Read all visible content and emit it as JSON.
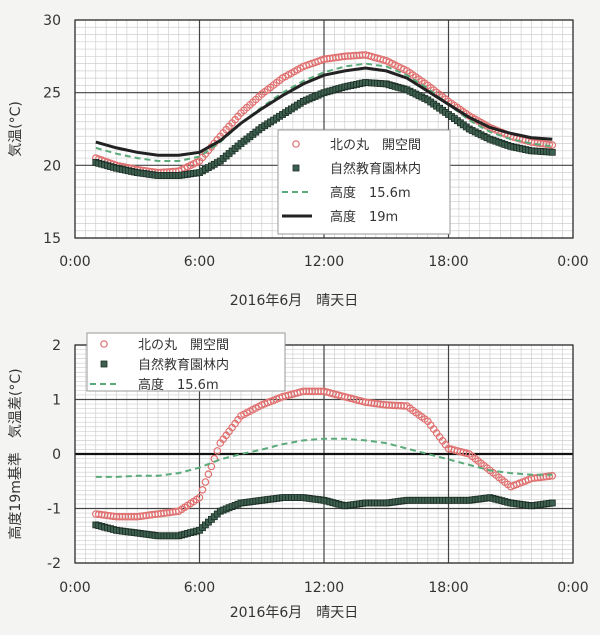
{
  "chart_data": [
    {
      "type": "line",
      "ylabel": "気温(°C)",
      "xlabel": "2016年6月　晴天日",
      "x_tick_labels": [
        "0:00",
        "6:00",
        "12:00",
        "18:00",
        "0:00"
      ],
      "y_tick_labels": [
        "15",
        "20",
        "25",
        "30"
      ],
      "xlim": [
        0,
        24
      ],
      "ylim": [
        15,
        30
      ],
      "grid": true,
      "legend_position": "center-right",
      "series": [
        {
          "name": "北の丸　開空間",
          "style": "circle",
          "color": "#e07070",
          "x": [
            1,
            2,
            3,
            4,
            5,
            6,
            7,
            8,
            9,
            10,
            11,
            12,
            13,
            14,
            15,
            16,
            17,
            18,
            19,
            20,
            21,
            22,
            23
          ],
          "y": [
            20.5,
            20.0,
            19.7,
            19.5,
            19.6,
            20.3,
            22.0,
            23.6,
            24.9,
            26.0,
            26.8,
            27.3,
            27.5,
            27.6,
            27.2,
            26.5,
            25.5,
            24.4,
            23.4,
            22.6,
            22.0,
            21.6,
            21.4
          ]
        },
        {
          "name": "自然教育園林内",
          "style": "square",
          "color": "#3e6050",
          "x": [
            1,
            2,
            3,
            4,
            5,
            6,
            7,
            8,
            9,
            10,
            11,
            12,
            13,
            14,
            15,
            16,
            17,
            18,
            19,
            20,
            21,
            22,
            23
          ],
          "y": [
            20.2,
            19.8,
            19.5,
            19.3,
            19.3,
            19.5,
            20.3,
            21.5,
            22.6,
            23.5,
            24.4,
            25.0,
            25.4,
            25.7,
            25.6,
            25.2,
            24.5,
            23.5,
            22.5,
            21.8,
            21.3,
            21.0,
            20.9
          ]
        },
        {
          "name": "高度　15.6m",
          "style": "dashed",
          "color": "#5aaa7a",
          "x": [
            1,
            2,
            3,
            4,
            5,
            6,
            7,
            8,
            9,
            10,
            11,
            12,
            13,
            14,
            15,
            16,
            17,
            18,
            19,
            20,
            21,
            22,
            23
          ],
          "y": [
            21.2,
            20.8,
            20.5,
            20.3,
            20.3,
            20.6,
            21.6,
            22.9,
            24.0,
            25.0,
            25.8,
            26.4,
            26.8,
            27.0,
            26.8,
            26.2,
            25.3,
            24.2,
            23.1,
            22.3,
            21.8,
            21.5,
            21.3
          ]
        },
        {
          "name": "高度　19m",
          "style": "solid",
          "color": "#222222",
          "x": [
            1,
            2,
            3,
            4,
            5,
            6,
            7,
            8,
            9,
            10,
            11,
            12,
            13,
            14,
            15,
            16,
            17,
            18,
            19,
            20,
            21,
            22,
            23
          ],
          "y": [
            21.6,
            21.2,
            20.9,
            20.7,
            20.7,
            20.9,
            21.7,
            22.9,
            23.9,
            24.8,
            25.6,
            26.2,
            26.5,
            26.7,
            26.5,
            26.0,
            25.1,
            24.2,
            23.3,
            22.6,
            22.2,
            21.9,
            21.8
          ]
        }
      ]
    },
    {
      "type": "line",
      "ylabel": "高度19m基準　気温差(°C)",
      "xlabel": "2016年6月　晴天日",
      "x_tick_labels": [
        "0:00",
        "6:00",
        "12:00",
        "18:00",
        "0:00"
      ],
      "y_tick_labels": [
        "-2",
        "-1",
        "0",
        "1",
        "2"
      ],
      "xlim": [
        0,
        24
      ],
      "ylim": [
        -2,
        2
      ],
      "grid": true,
      "legend_position": "top-left",
      "series": [
        {
          "name": "北の丸　開空間",
          "style": "circle",
          "color": "#e07070",
          "x": [
            1,
            2,
            3,
            4,
            5,
            6,
            7,
            8,
            9,
            10,
            11,
            12,
            13,
            14,
            15,
            16,
            17,
            18,
            19,
            20,
            21,
            22,
            23
          ],
          "y": [
            -1.1,
            -1.15,
            -1.15,
            -1.1,
            -1.05,
            -0.8,
            0.2,
            0.7,
            0.9,
            1.05,
            1.15,
            1.15,
            1.05,
            0.95,
            0.9,
            0.88,
            0.6,
            0.1,
            0.0,
            -0.3,
            -0.6,
            -0.45,
            -0.4
          ]
        },
        {
          "name": "自然教育園林内",
          "style": "square",
          "color": "#3e6050",
          "x": [
            1,
            2,
            3,
            4,
            5,
            6,
            7,
            8,
            9,
            10,
            11,
            12,
            13,
            14,
            15,
            16,
            17,
            18,
            19,
            20,
            21,
            22,
            23
          ],
          "y": [
            -1.3,
            -1.4,
            -1.45,
            -1.5,
            -1.5,
            -1.4,
            -1.05,
            -0.9,
            -0.85,
            -0.8,
            -0.8,
            -0.85,
            -0.95,
            -0.9,
            -0.9,
            -0.85,
            -0.85,
            -0.85,
            -0.85,
            -0.8,
            -0.9,
            -0.95,
            -0.9
          ]
        },
        {
          "name": "高度　15.6m",
          "style": "dashed",
          "color": "#5aaa7a",
          "x": [
            1,
            2,
            3,
            4,
            5,
            6,
            7,
            8,
            9,
            10,
            11,
            12,
            13,
            14,
            15,
            16,
            17,
            18,
            19,
            20,
            21,
            22,
            23
          ],
          "y": [
            -0.42,
            -0.42,
            -0.4,
            -0.4,
            -0.35,
            -0.25,
            -0.1,
            0.0,
            0.08,
            0.18,
            0.25,
            0.28,
            0.28,
            0.25,
            0.2,
            0.1,
            0.0,
            -0.1,
            -0.2,
            -0.3,
            -0.35,
            -0.38,
            -0.38
          ]
        }
      ]
    }
  ]
}
